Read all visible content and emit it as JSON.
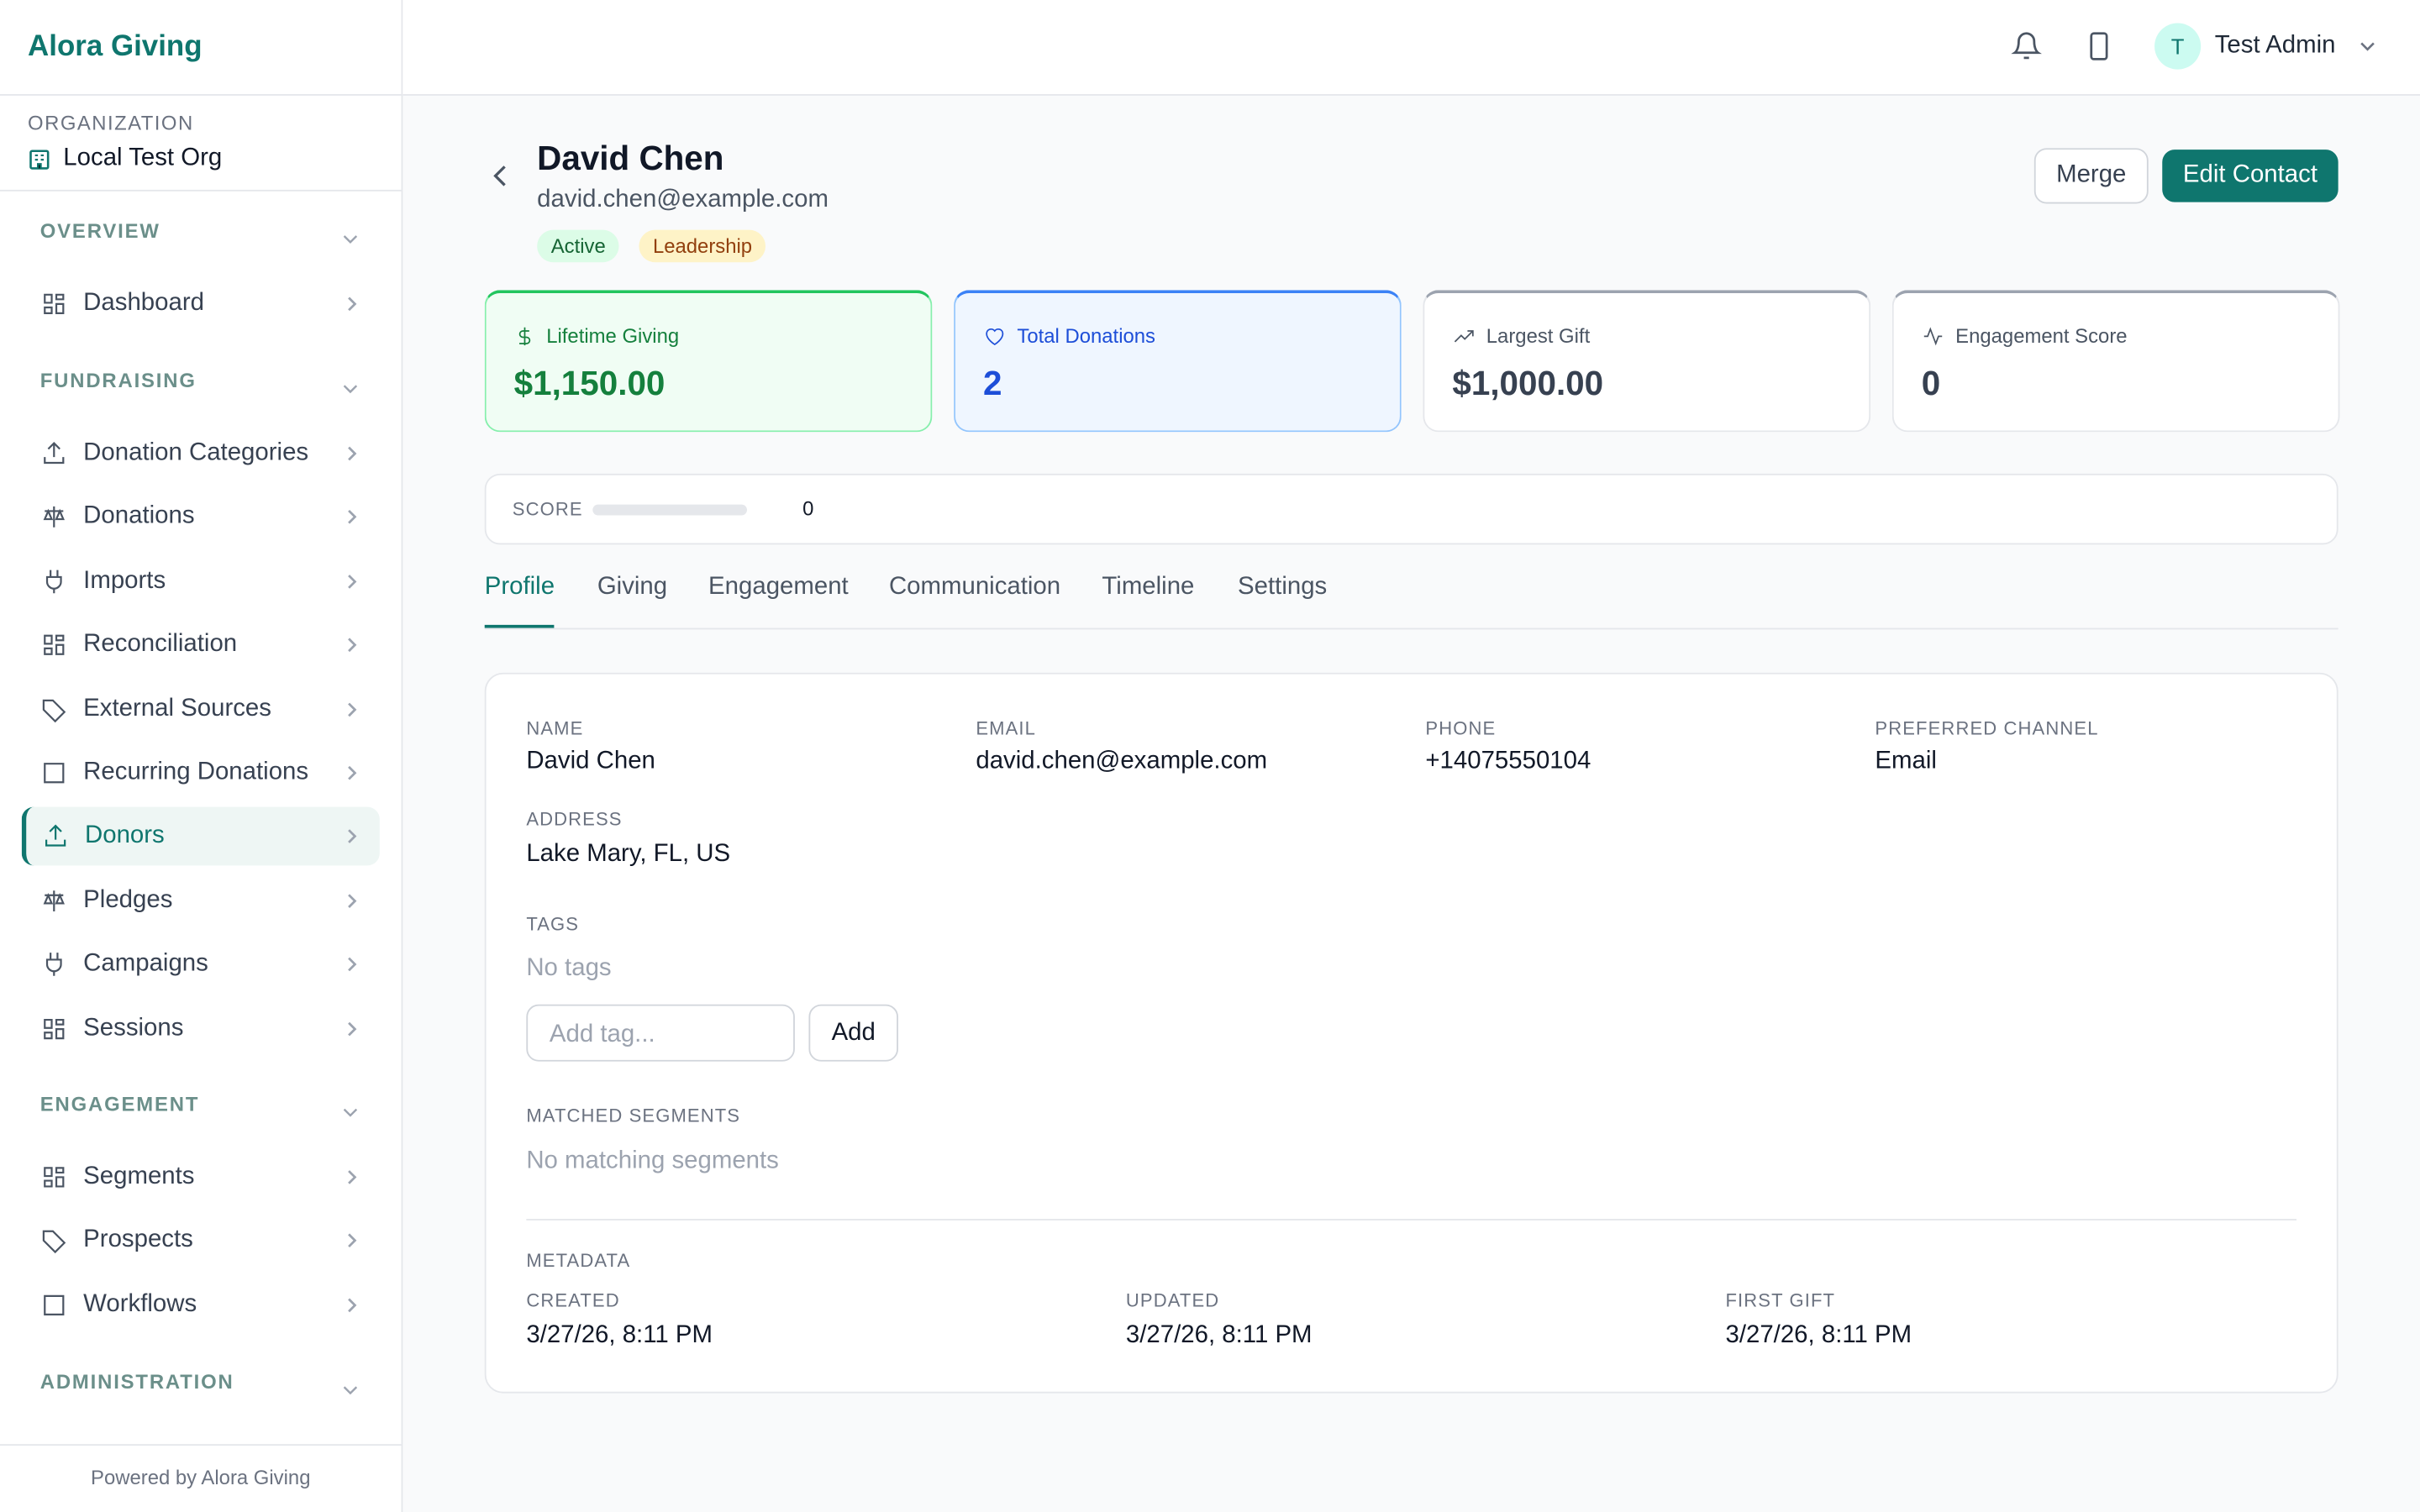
{
  "sidebar": {
    "brand": "Alora Giving",
    "org_label": "ORGANIZATION",
    "org_name": "Local Test Org",
    "sections": [
      {
        "title": "OVERVIEW",
        "items": [
          "Dashboard"
        ]
      },
      {
        "title": "FUNDRAISING",
        "items": [
          "Donation Categories",
          "Donations",
          "Imports",
          "Reconciliation",
          "External Sources",
          "Recurring Donations",
          "Donors",
          "Pledges",
          "Campaigns",
          "Sessions"
        ]
      },
      {
        "title": "ENGAGEMENT",
        "items": [
          "Segments",
          "Prospects",
          "Workflows"
        ]
      },
      {
        "title": "ADMINISTRATION",
        "items": []
      }
    ],
    "active_section": 1,
    "active_item": 6,
    "footer": "Powered by Alora Giving"
  },
  "header": {
    "avatar_initial": "T",
    "user_name": "Test Admin"
  },
  "contact": {
    "name": "David Chen",
    "email": "david.chen@example.com",
    "badges": [
      "Active",
      "Leadership"
    ],
    "actions": [
      "Merge",
      "Edit Contact"
    ]
  },
  "stats": [
    {
      "label": "Lifetime Giving",
      "value": "$1,150.00"
    },
    {
      "label": "Total Donations",
      "value": "2"
    },
    {
      "label": "Largest Gift",
      "value": "$1,000.00"
    },
    {
      "label": "Engagement Score",
      "value": "0"
    }
  ],
  "score": {
    "label": "SCORE",
    "value": 0
  },
  "tabs": [
    "Profile",
    "Giving",
    "Engagement",
    "Communication",
    "Timeline",
    "Settings"
  ],
  "active_tab": 0,
  "profile": {
    "fields": [
      {
        "label": "NAME",
        "value": "David Chen"
      },
      {
        "label": "EMAIL",
        "value": "david.chen@example.com"
      },
      {
        "label": "PHONE",
        "value": "+14075550104"
      },
      {
        "label": "PREFERRED CHANNEL",
        "value": "Email"
      }
    ],
    "address": {
      "label": "ADDRESS",
      "value": "Lake Mary, FL, US"
    },
    "tags": {
      "label": "TAGS",
      "empty": "No tags",
      "input_placeholder": "Add tag...",
      "button": "Add"
    },
    "segments": {
      "label": "MATCHED SEGMENTS",
      "empty": "No matching segments"
    },
    "metadata": {
      "title": "METADATA",
      "fields": [
        {
          "label": "CREATED",
          "value": "3/27/26, 8:11 PM"
        },
        {
          "label": "UPDATED",
          "value": "3/27/26, 8:11 PM"
        },
        {
          "label": "FIRST GIFT",
          "value": "3/27/26, 8:11 PM"
        }
      ]
    }
  }
}
